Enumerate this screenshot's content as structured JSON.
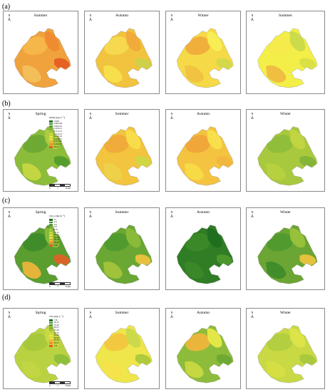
{
  "rows": [
    {
      "label": "(a)",
      "panels": [
        {
          "title": "Summer",
          "base": "#f0a23c",
          "patches": [
            {
              "c": "#f5b94a"
            },
            {
              "c": "#ee8a30"
            },
            {
              "c": "#e45a22"
            },
            {
              "c": "#f3c15a"
            }
          ]
        },
        {
          "title": "Autumn",
          "base": "#f2c33f",
          "patches": [
            {
              "c": "#f7dc52"
            },
            {
              "c": "#f0a83a"
            },
            {
              "c": "#c9d24a"
            },
            {
              "c": "#f7e24c"
            }
          ]
        },
        {
          "title": "Winter",
          "base": "#f6d946",
          "patches": [
            {
              "c": "#f0a83a"
            },
            {
              "c": "#f7ee55"
            },
            {
              "c": "#cfd84a"
            },
            {
              "c": "#f2c040"
            }
          ]
        },
        {
          "title": "Summer",
          "base": "#f3ef48",
          "patches": [
            {
              "c": "#f5ea4a"
            },
            {
              "c": "#c6d84a"
            },
            {
              "c": "#d7df45"
            },
            {
              "c": "#f0b840"
            }
          ]
        }
      ]
    },
    {
      "label": "(b)",
      "legend": {
        "title": "DOM (mg·L⁻¹)",
        "items": [
          {
            "c": "#1f6e1f",
            "t": "<0.08"
          },
          {
            "c": "#3d8a2a",
            "t": "0.08-0.09"
          },
          {
            "c": "#5b9e2f",
            "t": "0.09-0.10"
          },
          {
            "c": "#7fb236",
            "t": "0.10-0.11"
          },
          {
            "c": "#a6c63c",
            "t": "0.11-0.12"
          },
          {
            "c": "#cbd943",
            "t": "0.12-0.13"
          },
          {
            "c": "#ecec4a",
            "t": "0.13-0.14"
          },
          {
            "c": "#f6d842",
            "t": "0.14-0.15"
          },
          {
            "c": "#f3b53c",
            "t": "0.15-0.16"
          },
          {
            "c": "#ee8f32",
            "t": "0.16-0.17"
          },
          {
            "c": "#e65e28",
            "t": ">0.17"
          }
        ]
      },
      "panels": [
        {
          "title": "Spring",
          "base": "#8cbd3a",
          "patches": [
            {
              "c": "#6aa733"
            },
            {
              "c": "#b0cd3f"
            },
            {
              "c": "#4f9a2e"
            },
            {
              "c": "#c9d843"
            }
          ]
        },
        {
          "title": "Summer",
          "base": "#f3c43e",
          "patches": [
            {
              "c": "#f0a83a"
            },
            {
              "c": "#f7e04a"
            },
            {
              "c": "#cdd845"
            },
            {
              "c": "#ecd44a"
            }
          ]
        },
        {
          "title": "Autumn",
          "base": "#f4c340",
          "patches": [
            {
              "c": "#f0a43a"
            },
            {
              "c": "#f7e34c"
            },
            {
              "c": "#f2b63e"
            },
            {
              "c": "#f6de48"
            }
          ]
        },
        {
          "title": "Winter",
          "base": "#a8c83e",
          "patches": [
            {
              "c": "#8dbc3a"
            },
            {
              "c": "#c3d542"
            },
            {
              "c": "#7fb236"
            },
            {
              "c": "#b8d040"
            }
          ]
        }
      ]
    },
    {
      "label": "(c)",
      "legend": {
        "title": "Chl-a (mg·m⁻³)",
        "items": [
          {
            "c": "#1f6e1f",
            "t": "<2"
          },
          {
            "c": "#3d8a2a",
            "t": "2-4"
          },
          {
            "c": "#5b9e2f",
            "t": "4-6"
          },
          {
            "c": "#7fb236",
            "t": "6-8"
          },
          {
            "c": "#a6c63c",
            "t": "8-10"
          },
          {
            "c": "#cbd943",
            "t": "10-12"
          },
          {
            "c": "#ecec4a",
            "t": "12-14"
          },
          {
            "c": "#f6d842",
            "t": "14-16"
          },
          {
            "c": "#f3b53c",
            "t": "16-18"
          },
          {
            "c": "#ee8f32",
            "t": "18-20"
          },
          {
            "c": "#e65e28",
            "t": ">20"
          }
        ]
      },
      "panels": [
        {
          "title": "Spring",
          "base": "#5a9e30",
          "patches": [
            {
              "c": "#3d8a2a"
            },
            {
              "c": "#8cbd3a"
            },
            {
              "c": "#e65e28"
            },
            {
              "c": "#f3b53c"
            }
          ]
        },
        {
          "title": "Summer",
          "base": "#6aa733",
          "patches": [
            {
              "c": "#4f9a2e"
            },
            {
              "c": "#8dbc3a"
            },
            {
              "c": "#f3c43e"
            },
            {
              "c": "#a6c63c"
            }
          ]
        },
        {
          "title": "Autumn",
          "base": "#2f7d24",
          "patches": [
            {
              "c": "#3d8a2a"
            },
            {
              "c": "#1f6e1f"
            },
            {
              "c": "#4f9a2e"
            },
            {
              "c": "#3d8a2a"
            }
          ]
        },
        {
          "title": "Winter",
          "base": "#6ba533",
          "patches": [
            {
              "c": "#4f9a2e"
            },
            {
              "c": "#9cc33c"
            },
            {
              "c": "#f3c43e"
            },
            {
              "c": "#3d8a2a"
            }
          ]
        }
      ]
    },
    {
      "label": "(d)",
      "legend": {
        "title": "TSS (mg·L⁻¹)",
        "items": [
          {
            "c": "#1f6e1f",
            "t": "<10"
          },
          {
            "c": "#3d8a2a",
            "t": "10-15"
          },
          {
            "c": "#5b9e2f",
            "t": "15-20"
          },
          {
            "c": "#7fb236",
            "t": "20-25"
          },
          {
            "c": "#a6c63c",
            "t": "25-30"
          },
          {
            "c": "#cbd943",
            "t": "30-35"
          },
          {
            "c": "#ecec4a",
            "t": "35-40"
          },
          {
            "c": "#f6d842",
            "t": "40-45"
          },
          {
            "c": "#f3b53c",
            "t": "45-50"
          },
          {
            "c": "#ee8f32",
            "t": "50-55"
          },
          {
            "c": "#e65e28",
            "t": ">55"
          }
        ]
      },
      "panels": [
        {
          "title": "Spring",
          "base": "#b9d241",
          "patches": [
            {
              "c": "#a6c63c"
            },
            {
              "c": "#cbd943"
            },
            {
              "c": "#8cbd3a"
            },
            {
              "c": "#c3d542"
            }
          ]
        },
        {
          "title": "Summer",
          "base": "#eee64a",
          "patches": [
            {
              "c": "#f3c43e"
            },
            {
              "c": "#c6d84a"
            },
            {
              "c": "#a6c63c"
            },
            {
              "c": "#f6e14a"
            }
          ]
        },
        {
          "title": "Autumn",
          "base": "#8dbc3a",
          "patches": [
            {
              "c": "#f3b53c"
            },
            {
              "c": "#ecec4a"
            },
            {
              "c": "#6aa733"
            },
            {
              "c": "#cbd943"
            }
          ]
        },
        {
          "title": "Winter",
          "base": "#c8d944",
          "patches": [
            {
              "c": "#b0cd3f"
            },
            {
              "c": "#dfe448"
            },
            {
              "c": "#a6c63c"
            },
            {
              "c": "#d6df45"
            }
          ]
        }
      ]
    }
  ],
  "north_label": "N",
  "scale_ticks": [
    "0",
    "5",
    "10 km"
  ]
}
